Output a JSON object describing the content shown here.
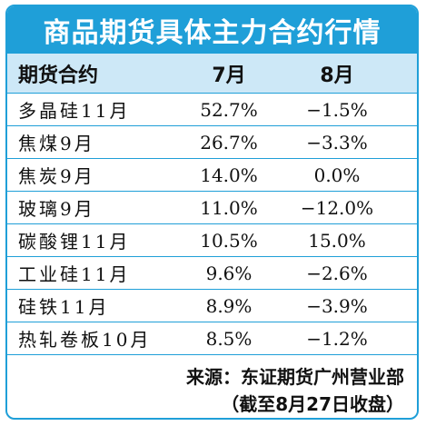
{
  "title": "商品期货具体主力合约行情",
  "header": {
    "name": "期货合约",
    "jul": "7月",
    "aug": "8月"
  },
  "rows": [
    {
      "name": "多晶硅11月",
      "jul": "52.7%",
      "aug": "−1.5%"
    },
    {
      "name": "焦煤9月",
      "jul": "26.7%",
      "aug": "−3.3%"
    },
    {
      "name": "焦炭9月",
      "jul": "14.0%",
      "aug": "0.0%"
    },
    {
      "name": "玻璃9月",
      "jul": "11.0%",
      "aug": "−12.0%"
    },
    {
      "name": "碳酸锂11月",
      "jul": "10.5%",
      "aug": "15.0%"
    },
    {
      "name": "工业硅11月",
      "jul": "9.6%",
      "aug": "−2.6%"
    },
    {
      "name": "硅铁11月",
      "jul": "8.9%",
      "aug": "−3.9%"
    },
    {
      "name": "热轧卷板10月",
      "jul": "8.5%",
      "aug": "−1.2%"
    }
  ],
  "footer": {
    "source": "来源：东证期货广州营业部",
    "date_note": "（截至8月27日收盘）"
  },
  "colors": {
    "accent": "#1f9fd8",
    "header_fill": "#cde8f7",
    "title_text": "#ffffff"
  }
}
